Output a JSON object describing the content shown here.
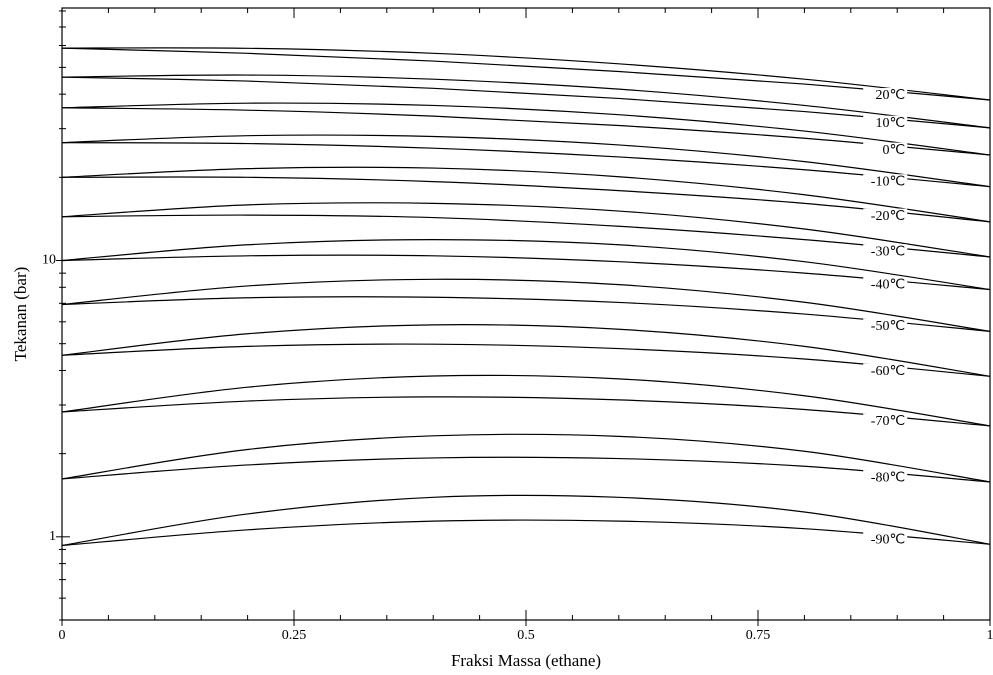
{
  "chart_data": {
    "type": "line",
    "x_label": "Fraksi Massa (ethane)",
    "y_label": "Tekanan (bar)",
    "log_y": true,
    "xlim": [
      0,
      1
    ],
    "xticks": [
      0,
      0.25,
      0.5,
      0.75,
      1
    ],
    "ylim": [
      0.5,
      82
    ],
    "yticks": [
      1,
      10
    ],
    "color": "#000000",
    "x": [
      0,
      0.2,
      0.4,
      0.6,
      0.8,
      1
    ],
    "series": [
      {
        "name": "20℃",
        "upper": [
          58.7,
          58.6,
          56.2,
          51.5,
          45.3,
          38.1
        ],
        "lower": [
          58.7,
          56.2,
          52.7,
          48.3,
          43.5,
          38.1
        ]
      },
      {
        "name": "10℃",
        "upper": [
          46.1,
          46.9,
          45.3,
          41.7,
          36.4,
          30.2
        ],
        "lower": [
          46.1,
          44.6,
          42.0,
          38.6,
          34.6,
          30.2
        ]
      },
      {
        "name": "0℃",
        "upper": [
          35.7,
          37.1,
          36.4,
          33.7,
          29.4,
          24.1
        ],
        "lower": [
          35.7,
          35.0,
          33.3,
          30.8,
          27.7,
          24.1
        ]
      },
      {
        "name": "-10℃",
        "upper": [
          26.7,
          28.3,
          28.1,
          26.2,
          22.8,
          18.5
        ],
        "lower": [
          26.7,
          26.5,
          25.5,
          23.7,
          21.3,
          18.5
        ]
      },
      {
        "name": "-20℃",
        "upper": [
          20.0,
          21.5,
          21.6,
          20.1,
          17.3,
          13.8
        ],
        "lower": [
          20.0,
          20.0,
          19.3,
          17.9,
          16.1,
          13.8
        ]
      },
      {
        "name": "-30℃",
        "upper": [
          14.4,
          15.9,
          16.1,
          15.1,
          13.0,
          10.3
        ],
        "lower": [
          14.4,
          14.6,
          14.3,
          13.3,
          11.9,
          10.3
        ]
      },
      {
        "name": "-40℃",
        "upper": [
          10.0,
          11.4,
          11.9,
          11.4,
          9.9,
          7.85
        ],
        "lower": [
          10.0,
          10.4,
          10.4,
          9.9,
          9.0,
          7.85
        ]
      },
      {
        "name": "-50℃",
        "upper": [
          6.93,
          8.09,
          8.55,
          8.18,
          7.06,
          5.54
        ],
        "lower": [
          6.93,
          7.33,
          7.36,
          7.05,
          6.4,
          5.54
        ]
      },
      {
        "name": "-60℃",
        "upper": [
          4.54,
          5.43,
          5.85,
          5.64,
          4.89,
          3.81
        ],
        "lower": [
          4.54,
          4.89,
          4.98,
          4.8,
          4.4,
          3.81
        ]
      },
      {
        "name": "-70℃",
        "upper": [
          2.83,
          3.48,
          3.82,
          3.73,
          3.24,
          2.52
        ],
        "lower": [
          2.83,
          3.1,
          3.21,
          3.13,
          2.89,
          2.52
        ]
      },
      {
        "name": "-80℃",
        "upper": [
          1.62,
          2.07,
          2.32,
          2.31,
          2.04,
          1.58
        ],
        "lower": [
          1.62,
          1.82,
          1.93,
          1.92,
          1.8,
          1.58
        ]
      },
      {
        "name": "-90℃",
        "upper": [
          0.93,
          1.21,
          1.39,
          1.39,
          1.23,
          0.94
        ],
        "lower": [
          0.93,
          1.06,
          1.14,
          1.14,
          1.07,
          0.94
        ]
      }
    ]
  }
}
